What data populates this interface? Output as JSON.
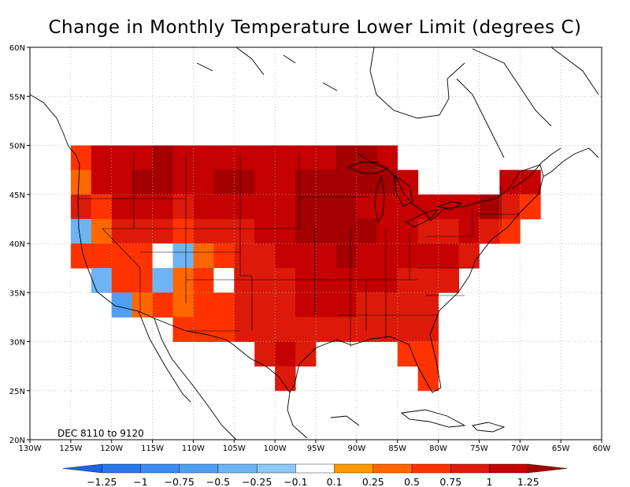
{
  "title": "Change in Monthly Temperature Lower Limit (degrees C)",
  "period_label": "DEC 8110 to 9120",
  "axes": {
    "lon_ticks": [
      "130W",
      "125W",
      "120W",
      "115W",
      "110W",
      "105W",
      "100W",
      "95W",
      "90W",
      "85W",
      "80W",
      "75W",
      "70W",
      "65W",
      "60W"
    ],
    "lat_ticks": [
      "20N",
      "25N",
      "30N",
      "35N",
      "40N",
      "45N",
      "50N",
      "55N",
      "60N"
    ],
    "lon_range": [
      -130,
      -60
    ],
    "lat_range": [
      20,
      60
    ],
    "grid": true
  },
  "colorbar": {
    "labels": [
      "-1.25",
      "-1",
      "-0.75",
      "-0.5",
      "-0.25",
      "-0.1",
      "0.1",
      "0.25",
      "0.5",
      "0.75",
      "1",
      "1.25"
    ],
    "colors": [
      "#1e64e6",
      "#2878ec",
      "#3c8cf0",
      "#50a0f2",
      "#6eb4f4",
      "#8cc8f8",
      "#ffffff",
      "#ff9900",
      "#ff6600",
      "#ff3300",
      "#dd1a0a",
      "#c40000",
      "#a40000"
    ]
  },
  "chart_data": {
    "type": "heatmap",
    "title": "Change in Monthly Temperature Lower Limit (degrees C)",
    "xlabel": "",
    "ylabel": "",
    "xlim": [
      -130,
      -60
    ],
    "ylim": [
      20,
      60
    ],
    "cell_size_deg": 2.5,
    "cells": [
      {
        "lat": 48.75,
        "lon": -123.75,
        "class": "0.5"
      },
      {
        "lat": 48.75,
        "lon": -121.25,
        "class": "1"
      },
      {
        "lat": 48.75,
        "lon": -118.75,
        "class": "1"
      },
      {
        "lat": 48.75,
        "lon": -116.25,
        "class": "1"
      },
      {
        "lat": 48.75,
        "lon": -113.75,
        "class": "1.25"
      },
      {
        "lat": 48.75,
        "lon": -111.25,
        "class": "1"
      },
      {
        "lat": 48.75,
        "lon": -108.75,
        "class": "1"
      },
      {
        "lat": 48.75,
        "lon": -106.25,
        "class": "1"
      },
      {
        "lat": 48.75,
        "lon": -103.75,
        "class": "1"
      },
      {
        "lat": 48.75,
        "lon": -101.25,
        "class": "1"
      },
      {
        "lat": 48.75,
        "lon": -98.75,
        "class": "1"
      },
      {
        "lat": 48.75,
        "lon": -96.25,
        "class": "1"
      },
      {
        "lat": 48.75,
        "lon": -93.75,
        "class": "1"
      },
      {
        "lat": 48.75,
        "lon": -91.25,
        "class": "1.25"
      },
      {
        "lat": 48.75,
        "lon": -88.75,
        "class": "1.25"
      },
      {
        "lat": 48.75,
        "lon": -86.25,
        "class": "1"
      },
      {
        "lat": 46.25,
        "lon": -123.75,
        "class": "0.25"
      },
      {
        "lat": 46.25,
        "lon": -121.25,
        "class": "1"
      },
      {
        "lat": 46.25,
        "lon": -118.75,
        "class": "1"
      },
      {
        "lat": 46.25,
        "lon": -116.25,
        "class": "1.25"
      },
      {
        "lat": 46.25,
        "lon": -113.75,
        "class": "1.25"
      },
      {
        "lat": 46.25,
        "lon": -111.25,
        "class": "1"
      },
      {
        "lat": 46.25,
        "lon": -108.75,
        "class": "1"
      },
      {
        "lat": 46.25,
        "lon": -106.25,
        "class": "1.25"
      },
      {
        "lat": 46.25,
        "lon": -103.75,
        "class": "1.25"
      },
      {
        "lat": 46.25,
        "lon": -101.25,
        "class": "1"
      },
      {
        "lat": 46.25,
        "lon": -98.75,
        "class": "1"
      },
      {
        "lat": 46.25,
        "lon": -96.25,
        "class": "1.25"
      },
      {
        "lat": 46.25,
        "lon": -93.75,
        "class": "1.25"
      },
      {
        "lat": 46.25,
        "lon": -91.25,
        "class": "1.25"
      },
      {
        "lat": 46.25,
        "lon": -88.75,
        "class": "1.25"
      },
      {
        "lat": 46.25,
        "lon": -86.25,
        "class": "1.25"
      },
      {
        "lat": 46.25,
        "lon": -83.75,
        "class": "1"
      },
      {
        "lat": 46.25,
        "lon": -71.25,
        "class": "1"
      },
      {
        "lat": 46.25,
        "lon": -68.75,
        "class": "1"
      },
      {
        "lat": 43.75,
        "lon": -123.75,
        "class": "0.75"
      },
      {
        "lat": 43.75,
        "lon": -121.25,
        "class": "0.5"
      },
      {
        "lat": 43.75,
        "lon": -118.75,
        "class": "1"
      },
      {
        "lat": 43.75,
        "lon": -116.25,
        "class": "1"
      },
      {
        "lat": 43.75,
        "lon": -113.75,
        "class": "1"
      },
      {
        "lat": 43.75,
        "lon": -111.25,
        "class": "0.75"
      },
      {
        "lat": 43.75,
        "lon": -108.75,
        "class": "1"
      },
      {
        "lat": 43.75,
        "lon": -106.25,
        "class": "1"
      },
      {
        "lat": 43.75,
        "lon": -103.75,
        "class": "1"
      },
      {
        "lat": 43.75,
        "lon": -101.25,
        "class": "1"
      },
      {
        "lat": 43.75,
        "lon": -98.75,
        "class": "1"
      },
      {
        "lat": 43.75,
        "lon": -96.25,
        "class": "1.25"
      },
      {
        "lat": 43.75,
        "lon": -93.75,
        "class": "1.25"
      },
      {
        "lat": 43.75,
        "lon": -91.25,
        "class": "1.25"
      },
      {
        "lat": 43.75,
        "lon": -88.75,
        "class": "1"
      },
      {
        "lat": 43.75,
        "lon": -86.25,
        "class": "1"
      },
      {
        "lat": 43.75,
        "lon": -83.75,
        "class": "1"
      },
      {
        "lat": 43.75,
        "lon": -81.25,
        "class": "1"
      },
      {
        "lat": 43.75,
        "lon": -78.75,
        "class": "1"
      },
      {
        "lat": 43.75,
        "lon": -76.25,
        "class": "1"
      },
      {
        "lat": 43.75,
        "lon": -73.75,
        "class": "1.25"
      },
      {
        "lat": 43.75,
        "lon": -71.25,
        "class": "0.75"
      },
      {
        "lat": 43.75,
        "lon": -68.75,
        "class": "0.5"
      },
      {
        "lat": 41.25,
        "lon": -123.75,
        "class": "-0.5"
      },
      {
        "lat": 41.25,
        "lon": -121.25,
        "class": "0.25"
      },
      {
        "lat": 41.25,
        "lon": -118.75,
        "class": "0.75"
      },
      {
        "lat": 41.25,
        "lon": -116.25,
        "class": "0.75"
      },
      {
        "lat": 41.25,
        "lon": -113.75,
        "class": "0.75"
      },
      {
        "lat": 41.25,
        "lon": -111.25,
        "class": "0.5"
      },
      {
        "lat": 41.25,
        "lon": -108.75,
        "class": "0.75"
      },
      {
        "lat": 41.25,
        "lon": -106.25,
        "class": "0.75"
      },
      {
        "lat": 41.25,
        "lon": -103.75,
        "class": "0.75"
      },
      {
        "lat": 41.25,
        "lon": -101.25,
        "class": "1"
      },
      {
        "lat": 41.25,
        "lon": -98.75,
        "class": "1"
      },
      {
        "lat": 41.25,
        "lon": -96.25,
        "class": "1.25"
      },
      {
        "lat": 41.25,
        "lon": -93.75,
        "class": "1.25"
      },
      {
        "lat": 41.25,
        "lon": -91.25,
        "class": "1.25"
      },
      {
        "lat": 41.25,
        "lon": -88.75,
        "class": "1.25"
      },
      {
        "lat": 41.25,
        "lon": -86.25,
        "class": "1"
      },
      {
        "lat": 41.25,
        "lon": -83.75,
        "class": "1"
      },
      {
        "lat": 41.25,
        "lon": -81.25,
        "class": "0.75"
      },
      {
        "lat": 41.25,
        "lon": -78.75,
        "class": "0.75"
      },
      {
        "lat": 41.25,
        "lon": -76.25,
        "class": "1"
      },
      {
        "lat": 41.25,
        "lon": -73.75,
        "class": "0.75"
      },
      {
        "lat": 41.25,
        "lon": -71.25,
        "class": "0.5"
      },
      {
        "lat": 38.75,
        "lon": -123.75,
        "class": "0.5"
      },
      {
        "lat": 38.75,
        "lon": -121.25,
        "class": "0.5"
      },
      {
        "lat": 38.75,
        "lon": -118.75,
        "class": "0.5"
      },
      {
        "lat": 38.75,
        "lon": -116.25,
        "class": "0.5"
      },
      {
        "lat": 38.75,
        "lon": -113.75,
        "class": "-0.1"
      },
      {
        "lat": 38.75,
        "lon": -111.25,
        "class": "-0.5"
      },
      {
        "lat": 38.75,
        "lon": -108.75,
        "class": "0.25"
      },
      {
        "lat": 38.75,
        "lon": -106.25,
        "class": "0.5"
      },
      {
        "lat": 38.75,
        "lon": -103.75,
        "class": "0.75"
      },
      {
        "lat": 38.75,
        "lon": -101.25,
        "class": "0.75"
      },
      {
        "lat": 38.75,
        "lon": -98.75,
        "class": "1"
      },
      {
        "lat": 38.75,
        "lon": -96.25,
        "class": "1"
      },
      {
        "lat": 38.75,
        "lon": -93.75,
        "class": "1"
      },
      {
        "lat": 38.75,
        "lon": -91.25,
        "class": "1.25"
      },
      {
        "lat": 38.75,
        "lon": -88.75,
        "class": "1"
      },
      {
        "lat": 38.75,
        "lon": -86.25,
        "class": "1"
      },
      {
        "lat": 38.75,
        "lon": -83.75,
        "class": "1"
      },
      {
        "lat": 38.75,
        "lon": -81.25,
        "class": "1"
      },
      {
        "lat": 38.75,
        "lon": -78.75,
        "class": "1"
      },
      {
        "lat": 38.75,
        "lon": -76.25,
        "class": "0.75"
      },
      {
        "lat": 36.25,
        "lon": -121.25,
        "class": "-0.5"
      },
      {
        "lat": 36.25,
        "lon": -118.75,
        "class": "0.5"
      },
      {
        "lat": 36.25,
        "lon": -116.25,
        "class": "0.5"
      },
      {
        "lat": 36.25,
        "lon": -113.75,
        "class": "-0.5"
      },
      {
        "lat": 36.25,
        "lon": -111.25,
        "class": "0.25"
      },
      {
        "lat": 36.25,
        "lon": -108.75,
        "class": "0.5"
      },
      {
        "lat": 36.25,
        "lon": -106.25,
        "class": "-0.1"
      },
      {
        "lat": 36.25,
        "lon": -103.75,
        "class": "0.75"
      },
      {
        "lat": 36.25,
        "lon": -101.25,
        "class": "0.75"
      },
      {
        "lat": 36.25,
        "lon": -98.75,
        "class": "0.75"
      },
      {
        "lat": 36.25,
        "lon": -96.25,
        "class": "1"
      },
      {
        "lat": 36.25,
        "lon": -93.75,
        "class": "1"
      },
      {
        "lat": 36.25,
        "lon": -91.25,
        "class": "1"
      },
      {
        "lat": 36.25,
        "lon": -88.75,
        "class": "1"
      },
      {
        "lat": 36.25,
        "lon": -86.25,
        "class": "1"
      },
      {
        "lat": 36.25,
        "lon": -83.75,
        "class": "0.75"
      },
      {
        "lat": 36.25,
        "lon": -81.25,
        "class": "0.75"
      },
      {
        "lat": 36.25,
        "lon": -78.75,
        "class": "0.75"
      },
      {
        "lat": 33.75,
        "lon": -118.75,
        "class": "-0.75"
      },
      {
        "lat": 33.75,
        "lon": -116.25,
        "class": "0.25"
      },
      {
        "lat": 33.75,
        "lon": -113.75,
        "class": "0.5"
      },
      {
        "lat": 33.75,
        "lon": -111.25,
        "class": "0.25"
      },
      {
        "lat": 33.75,
        "lon": -108.75,
        "class": "0.5"
      },
      {
        "lat": 33.75,
        "lon": -106.25,
        "class": "0.5"
      },
      {
        "lat": 33.75,
        "lon": -103.75,
        "class": "0.75"
      },
      {
        "lat": 33.75,
        "lon": -101.25,
        "class": "0.75"
      },
      {
        "lat": 33.75,
        "lon": -98.75,
        "class": "0.75"
      },
      {
        "lat": 33.75,
        "lon": -96.25,
        "class": "1"
      },
      {
        "lat": 33.75,
        "lon": -93.75,
        "class": "1"
      },
      {
        "lat": 33.75,
        "lon": -91.25,
        "class": "1"
      },
      {
        "lat": 33.75,
        "lon": -88.75,
        "class": "0.75"
      },
      {
        "lat": 33.75,
        "lon": -86.25,
        "class": "0.75"
      },
      {
        "lat": 33.75,
        "lon": -83.75,
        "class": "0.75"
      },
      {
        "lat": 33.75,
        "lon": -81.25,
        "class": "0.75"
      },
      {
        "lat": 31.25,
        "lon": -111.25,
        "class": "0.5"
      },
      {
        "lat": 31.25,
        "lon": -108.75,
        "class": "0.5"
      },
      {
        "lat": 31.25,
        "lon": -106.25,
        "class": "0.5"
      },
      {
        "lat": 31.25,
        "lon": -103.75,
        "class": "0.75"
      },
      {
        "lat": 31.25,
        "lon": -101.25,
        "class": "0.75"
      },
      {
        "lat": 31.25,
        "lon": -98.75,
        "class": "0.75"
      },
      {
        "lat": 31.25,
        "lon": -96.25,
        "class": "0.75"
      },
      {
        "lat": 31.25,
        "lon": -93.75,
        "class": "0.75"
      },
      {
        "lat": 31.25,
        "lon": -91.25,
        "class": "0.75"
      },
      {
        "lat": 31.25,
        "lon": -88.75,
        "class": "0.75"
      },
      {
        "lat": 31.25,
        "lon": -86.25,
        "class": "0.75"
      },
      {
        "lat": 31.25,
        "lon": -83.75,
        "class": "0.75"
      },
      {
        "lat": 31.25,
        "lon": -81.25,
        "class": "0.75"
      },
      {
        "lat": 28.75,
        "lon": -101.25,
        "class": "0.75"
      },
      {
        "lat": 28.75,
        "lon": -98.75,
        "class": "1"
      },
      {
        "lat": 28.75,
        "lon": -96.25,
        "class": "0.75"
      },
      {
        "lat": 28.75,
        "lon": -83.75,
        "class": "0.5"
      },
      {
        "lat": 28.75,
        "lon": -81.25,
        "class": "0.5"
      },
      {
        "lat": 26.25,
        "lon": -98.75,
        "class": "0.75"
      },
      {
        "lat": 26.25,
        "lon": -81.25,
        "class": "0.5"
      }
    ]
  }
}
